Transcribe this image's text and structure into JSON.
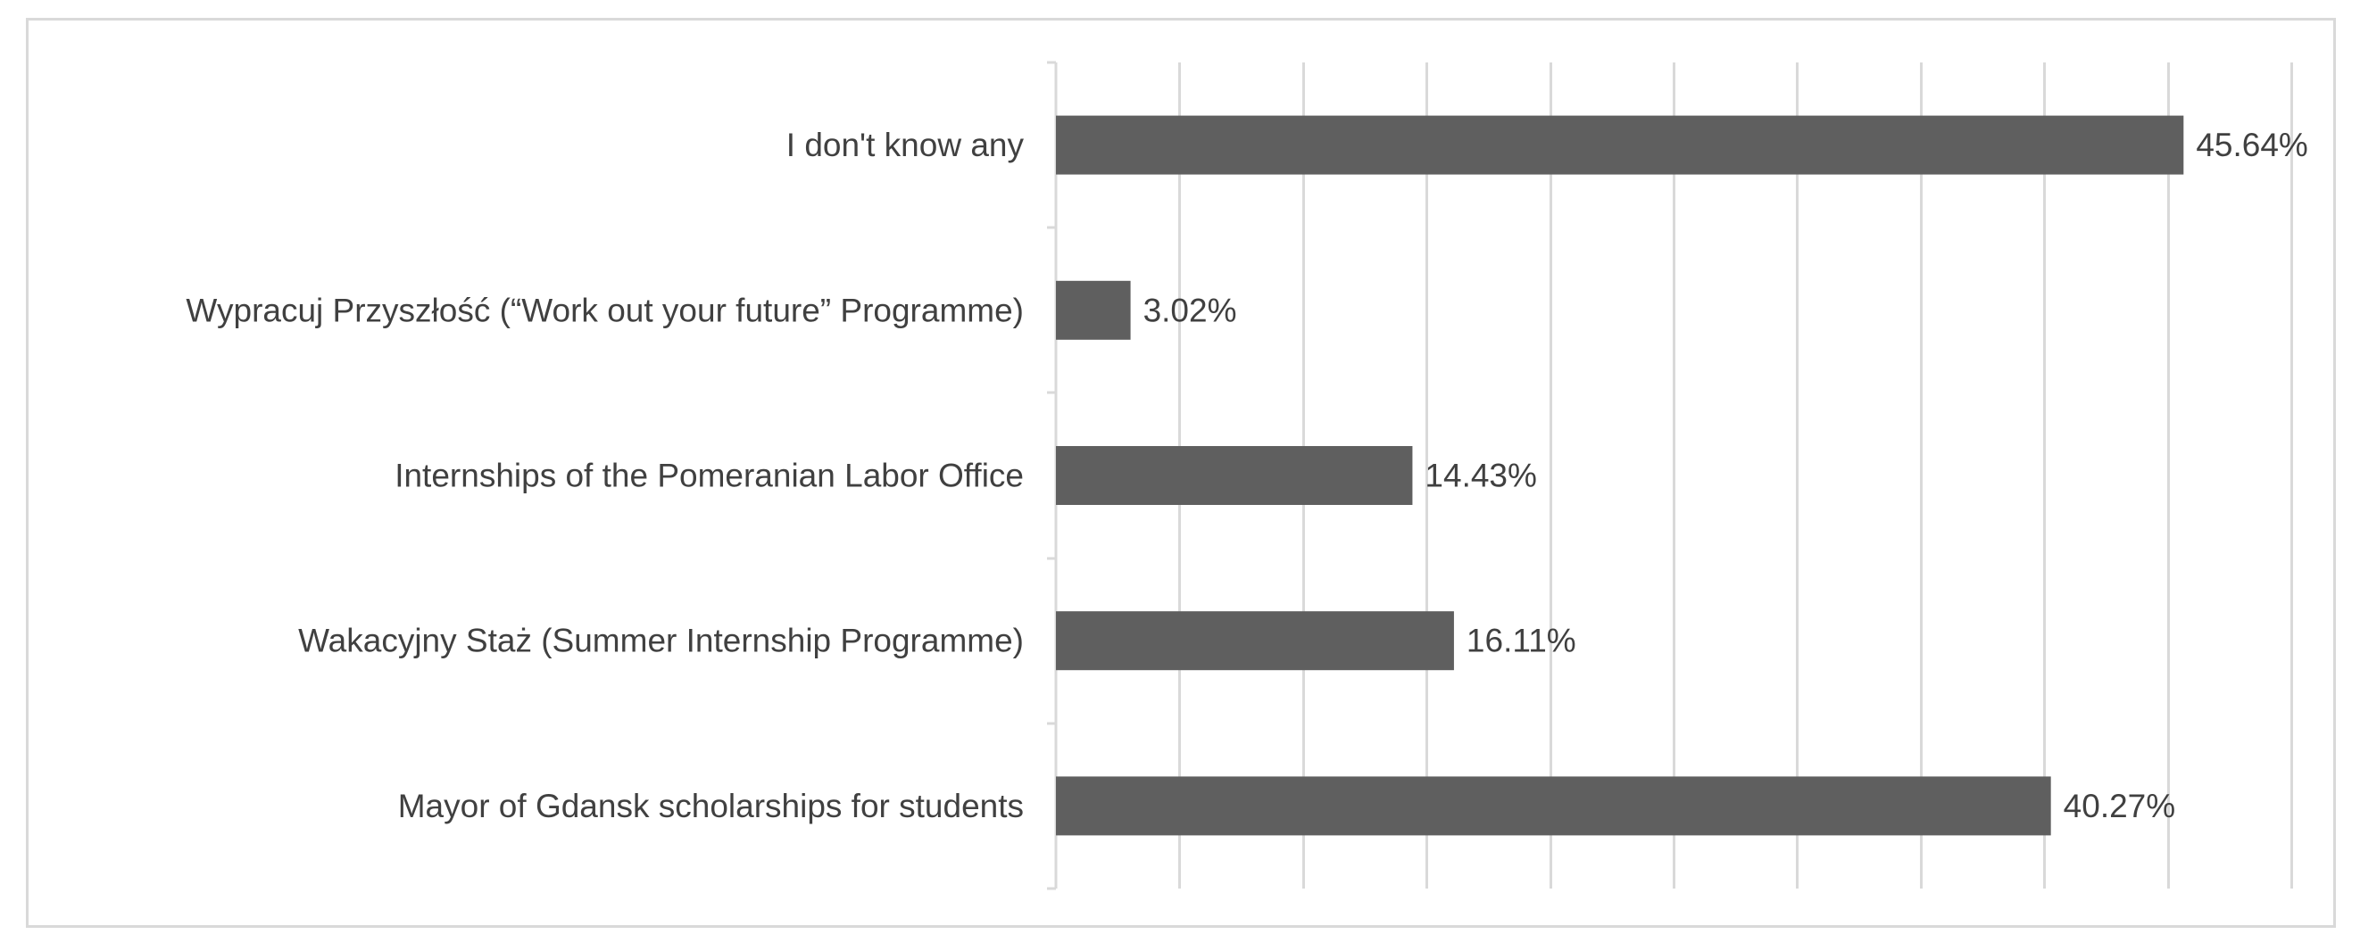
{
  "chart_data": {
    "type": "bar",
    "orientation": "horizontal",
    "title": "",
    "xlabel": "",
    "ylabel": "",
    "categories": [
      "I don't know any",
      "Wypracuj Przyszłość (“Work out your future” Programme)",
      "Internships of the Pomeranian Labor Office",
      "Wakacyjny Staż (Summer Internship Programme)",
      "Mayor of Gdansk scholarships for students"
    ],
    "values": [
      45.64,
      3.02,
      14.43,
      16.11,
      40.27
    ],
    "value_labels": [
      "45.64%",
      "3.02%",
      "14.43%",
      "16.11%",
      "40.27%"
    ],
    "xlim": [
      0,
      50
    ],
    "gridlines": true,
    "tick_labels_shown": false,
    "legend": "none",
    "colors": {
      "bar": "#5f5f5f",
      "gridline": "#d9d9d9",
      "axis": "#d9d9d9",
      "text": "#404040",
      "frame": "#d9d9d9"
    }
  }
}
